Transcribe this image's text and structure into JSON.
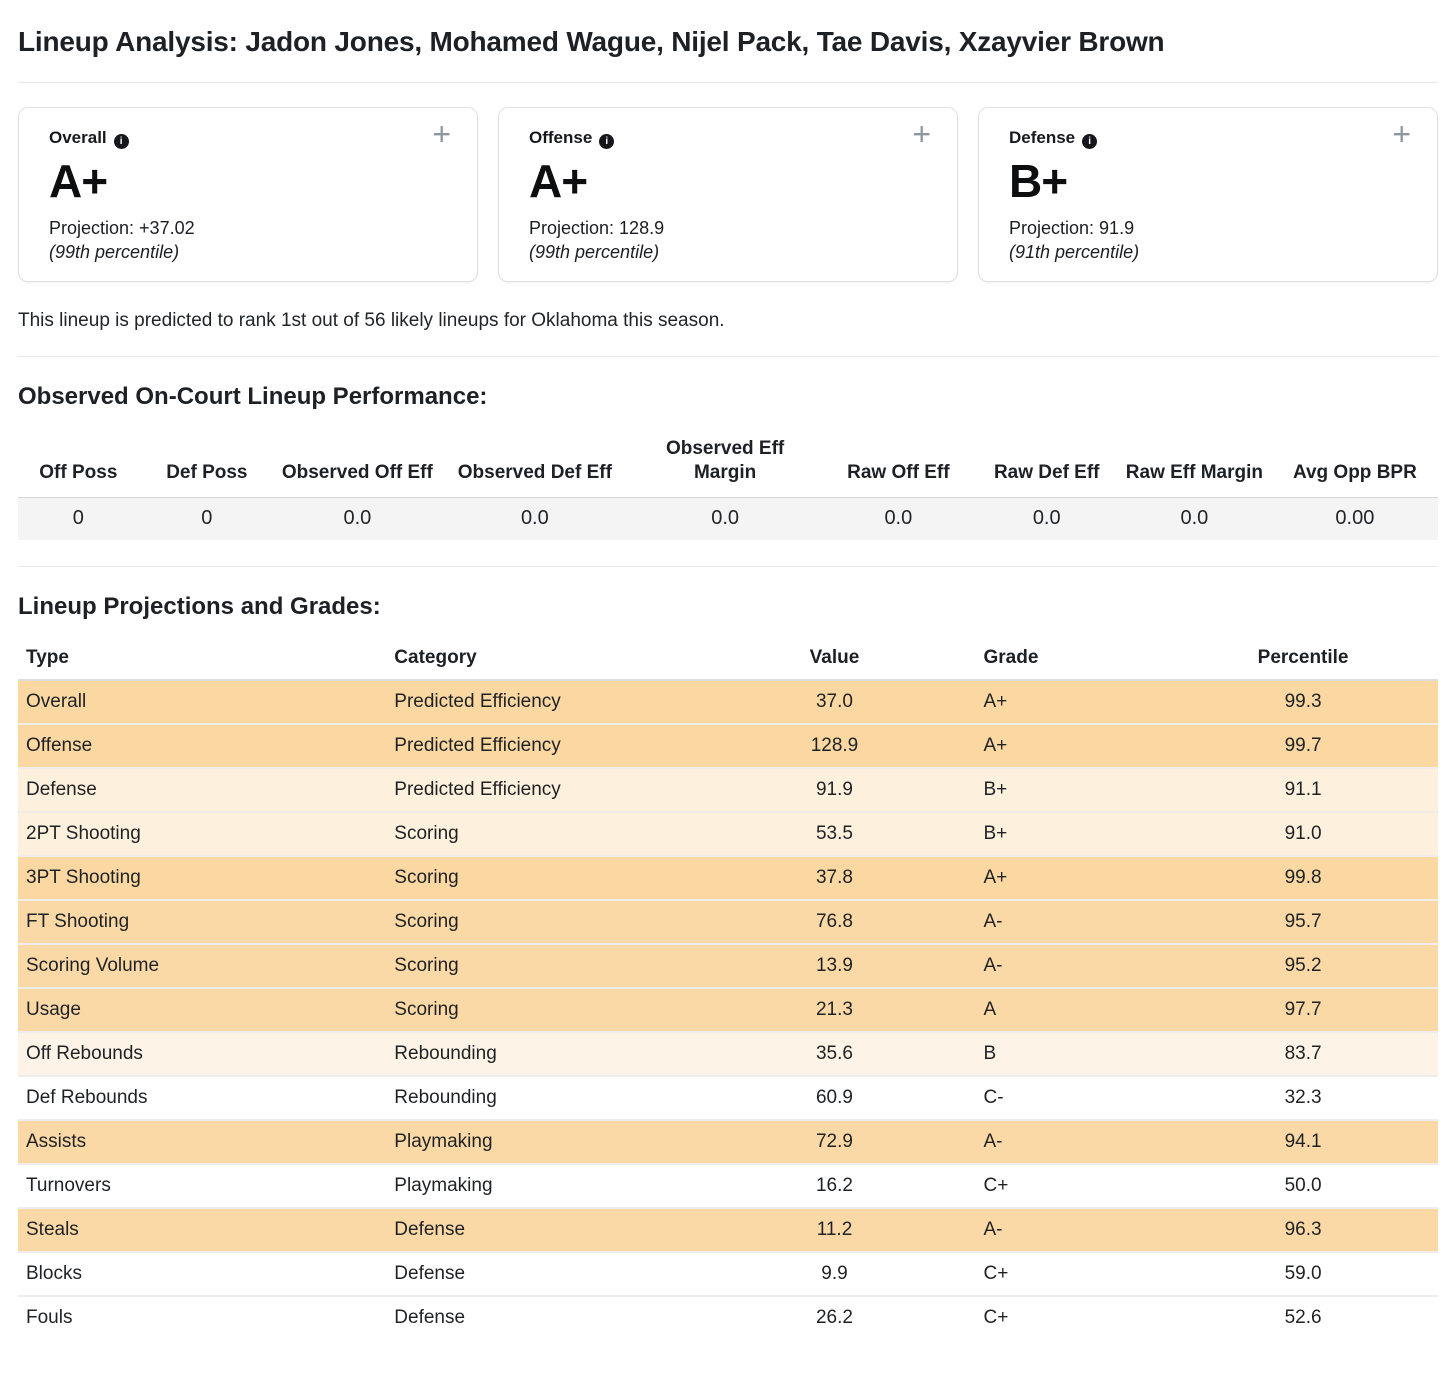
{
  "page": {
    "title": "Lineup Analysis: Jadon Jones, Mohamed Wague, Nijel Pack, Tae Davis, Xzayvier Brown",
    "summary": "This lineup is predicted to rank 1st out of 56 likely lineups for Oklahoma this season."
  },
  "icons": {
    "info": "i",
    "expand": "+"
  },
  "colors": {
    "row_tint_strong": "#fbd9a6",
    "row_tint_light": "#fdf0dc",
    "row_tint_faint": "#fdf3e6",
    "row_tint_none": "#ffffff",
    "observed_row_bg": "#f4f4f5"
  },
  "cards": [
    {
      "label": "Overall",
      "grade": "A+",
      "projection": "Projection: +37.02",
      "percentile": "(99th percentile)"
    },
    {
      "label": "Offense",
      "grade": "A+",
      "projection": "Projection: 128.9",
      "percentile": "(99th percentile)"
    },
    {
      "label": "Defense",
      "grade": "B+",
      "projection": "Projection: 91.9",
      "percentile": "(91th percentile)"
    }
  ],
  "observed": {
    "heading": "Observed On-Court Lineup Performance:",
    "columns": [
      "Off Poss",
      "Def Poss",
      "Observed Off Eff",
      "Observed Def Eff",
      "Observed Eff Margin",
      "Raw Off Eff",
      "Raw Def Eff",
      "Raw Eff Margin",
      "Avg Opp BPR"
    ],
    "values": [
      "0",
      "0",
      "0.0",
      "0.0",
      "0.0",
      "0.0",
      "0.0",
      "0.0",
      "0.00"
    ]
  },
  "projections": {
    "heading": "Lineup Projections and Grades:",
    "columns": [
      "Type",
      "Category",
      "Value",
      "Grade",
      "Percentile"
    ],
    "rows": [
      {
        "type": "Overall",
        "category": "Predicted Efficiency",
        "value": "37.0",
        "grade": "A+",
        "percentile": "99.3",
        "tint": "#fbd7a2"
      },
      {
        "type": "Offense",
        "category": "Predicted Efficiency",
        "value": "128.9",
        "grade": "A+",
        "percentile": "99.7",
        "tint": "#fbd7a2"
      },
      {
        "type": "Defense",
        "category": "Predicted Efficiency",
        "value": "91.9",
        "grade": "B+",
        "percentile": "91.1",
        "tint": "#fdf0dc"
      },
      {
        "type": "2PT Shooting",
        "category": "Scoring",
        "value": "53.5",
        "grade": "B+",
        "percentile": "91.0",
        "tint": "#fdf0dc"
      },
      {
        "type": "3PT Shooting",
        "category": "Scoring",
        "value": "37.8",
        "grade": "A+",
        "percentile": "99.8",
        "tint": "#fbd7a2"
      },
      {
        "type": "FT Shooting",
        "category": "Scoring",
        "value": "76.8",
        "grade": "A-",
        "percentile": "95.7",
        "tint": "#fbd9a6"
      },
      {
        "type": "Scoring Volume",
        "category": "Scoring",
        "value": "13.9",
        "grade": "A-",
        "percentile": "95.2",
        "tint": "#fbd9a6"
      },
      {
        "type": "Usage",
        "category": "Scoring",
        "value": "21.3",
        "grade": "A",
        "percentile": "97.7",
        "tint": "#fbd9a6"
      },
      {
        "type": "Off Rebounds",
        "category": "Rebounding",
        "value": "35.6",
        "grade": "B",
        "percentile": "83.7",
        "tint": "#fdf3e6"
      },
      {
        "type": "Def Rebounds",
        "category": "Rebounding",
        "value": "60.9",
        "grade": "C-",
        "percentile": "32.3",
        "tint": "#ffffff"
      },
      {
        "type": "Assists",
        "category": "Playmaking",
        "value": "72.9",
        "grade": "A-",
        "percentile": "94.1",
        "tint": "#fbd9a6"
      },
      {
        "type": "Turnovers",
        "category": "Playmaking",
        "value": "16.2",
        "grade": "C+",
        "percentile": "50.0",
        "tint": "#ffffff"
      },
      {
        "type": "Steals",
        "category": "Defense",
        "value": "11.2",
        "grade": "A-",
        "percentile": "96.3",
        "tint": "#fbd9a6"
      },
      {
        "type": "Blocks",
        "category": "Defense",
        "value": "9.9",
        "grade": "C+",
        "percentile": "59.0",
        "tint": "#ffffff"
      },
      {
        "type": "Fouls",
        "category": "Defense",
        "value": "26.2",
        "grade": "C+",
        "percentile": "52.6",
        "tint": "#ffffff"
      }
    ]
  }
}
